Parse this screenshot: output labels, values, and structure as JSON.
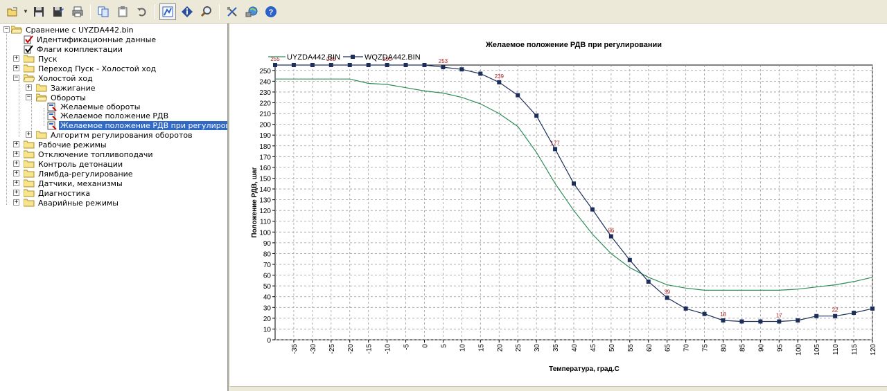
{
  "toolbar": {
    "buttons": [
      {
        "name": "open-icon"
      },
      {
        "name": "save-icon"
      },
      {
        "name": "save-as-icon"
      },
      {
        "name": "print-icon"
      },
      {
        "name": "copy-icon"
      },
      {
        "name": "paste-icon"
      },
      {
        "name": "undo-icon"
      },
      {
        "name": "chart-icon"
      },
      {
        "name": "info-icon"
      },
      {
        "name": "search-icon"
      },
      {
        "name": "tools-icon"
      },
      {
        "name": "network-icon"
      },
      {
        "name": "help-icon"
      }
    ]
  },
  "tree": {
    "root": "Сравнение с UYZDA442.bin",
    "items": {
      "ident": "Идентификационные данные",
      "flags": "Флаги комплектации",
      "start": "Пуск",
      "transition": "Переход Пуск - Холостой ход",
      "idle": "Холостой ход",
      "ignition": "Зажигание",
      "rpm": "Обороты",
      "desired_rpm": "Желаемые обороты",
      "desired_rdv": "Желаемое положение РДВ",
      "desired_rdv_reg": "Желаемое положение РДВ при регулировании",
      "rpm_alg": "Алгоритм регулирования оборотов",
      "work": "Рабочие режимы",
      "fuel_cut": "Отключение топливоподачи",
      "knock": "Контроль детонации",
      "lambda": "Лямбда-регулирование",
      "sensors": "Датчики, механизмы",
      "diag": "Диагностика",
      "emergency": "Аварийные режимы"
    }
  },
  "chart_data": {
    "type": "line",
    "title": "Желаемое положение РДВ при регулировании",
    "xlabel": "Температура, град.С",
    "ylabel": "Положение РДВ, шаг",
    "x": [
      -40,
      -35,
      -30,
      -25,
      -20,
      -15,
      -10,
      -5,
      0,
      5,
      10,
      15,
      20,
      25,
      30,
      35,
      40,
      45,
      50,
      55,
      60,
      65,
      70,
      75,
      80,
      85,
      90,
      95,
      100,
      105,
      110,
      115,
      120
    ],
    "x_ticks": [
      -35,
      -30,
      -25,
      -20,
      -15,
      -10,
      -5,
      0,
      5,
      10,
      15,
      20,
      25,
      30,
      35,
      40,
      45,
      50,
      55,
      60,
      65,
      70,
      75,
      80,
      85,
      90,
      95,
      100,
      105,
      110,
      115,
      120
    ],
    "ylim": [
      0,
      255
    ],
    "y_ticks": [
      0,
      10,
      20,
      30,
      40,
      50,
      60,
      70,
      80,
      90,
      100,
      110,
      120,
      130,
      140,
      150,
      160,
      170,
      180,
      190,
      200,
      210,
      220,
      230,
      240,
      250
    ],
    "grid": true,
    "legend": "top-left",
    "series": [
      {
        "name": "UYZDA442.BIN",
        "color": "#2e8b57",
        "markers": false,
        "values": [
          242,
          242,
          242,
          242,
          242,
          238,
          237,
          234,
          231,
          229,
          225,
          219,
          210,
          198,
          174,
          145,
          120,
          98,
          80,
          67,
          58,
          51,
          48,
          46,
          46,
          46,
          46,
          46,
          47,
          49,
          51,
          54,
          58
        ]
      },
      {
        "name": "WQZDA442.BIN",
        "color": "#1c2e5a",
        "markers": true,
        "values": [
          255,
          255,
          255,
          255,
          255,
          255,
          255,
          255,
          255,
          253,
          251,
          247,
          239,
          227,
          208,
          177,
          145,
          121,
          96,
          74,
          54,
          39,
          29,
          24,
          18,
          17,
          17,
          17,
          18,
          22,
          22,
          25,
          29
        ]
      }
    ],
    "annotations": [
      {
        "x": -40,
        "text": "255"
      },
      {
        "x": -25,
        "text": "255"
      },
      {
        "x": -10,
        "text": "255"
      },
      {
        "x": 5,
        "text": "253"
      },
      {
        "x": 20,
        "text": "239"
      },
      {
        "x": 35,
        "text": "177"
      },
      {
        "x": 50,
        "text": "96"
      },
      {
        "x": 65,
        "text": "39"
      },
      {
        "x": 80,
        "text": "18"
      },
      {
        "x": 95,
        "text": "17"
      },
      {
        "x": 110,
        "text": "22"
      }
    ]
  }
}
